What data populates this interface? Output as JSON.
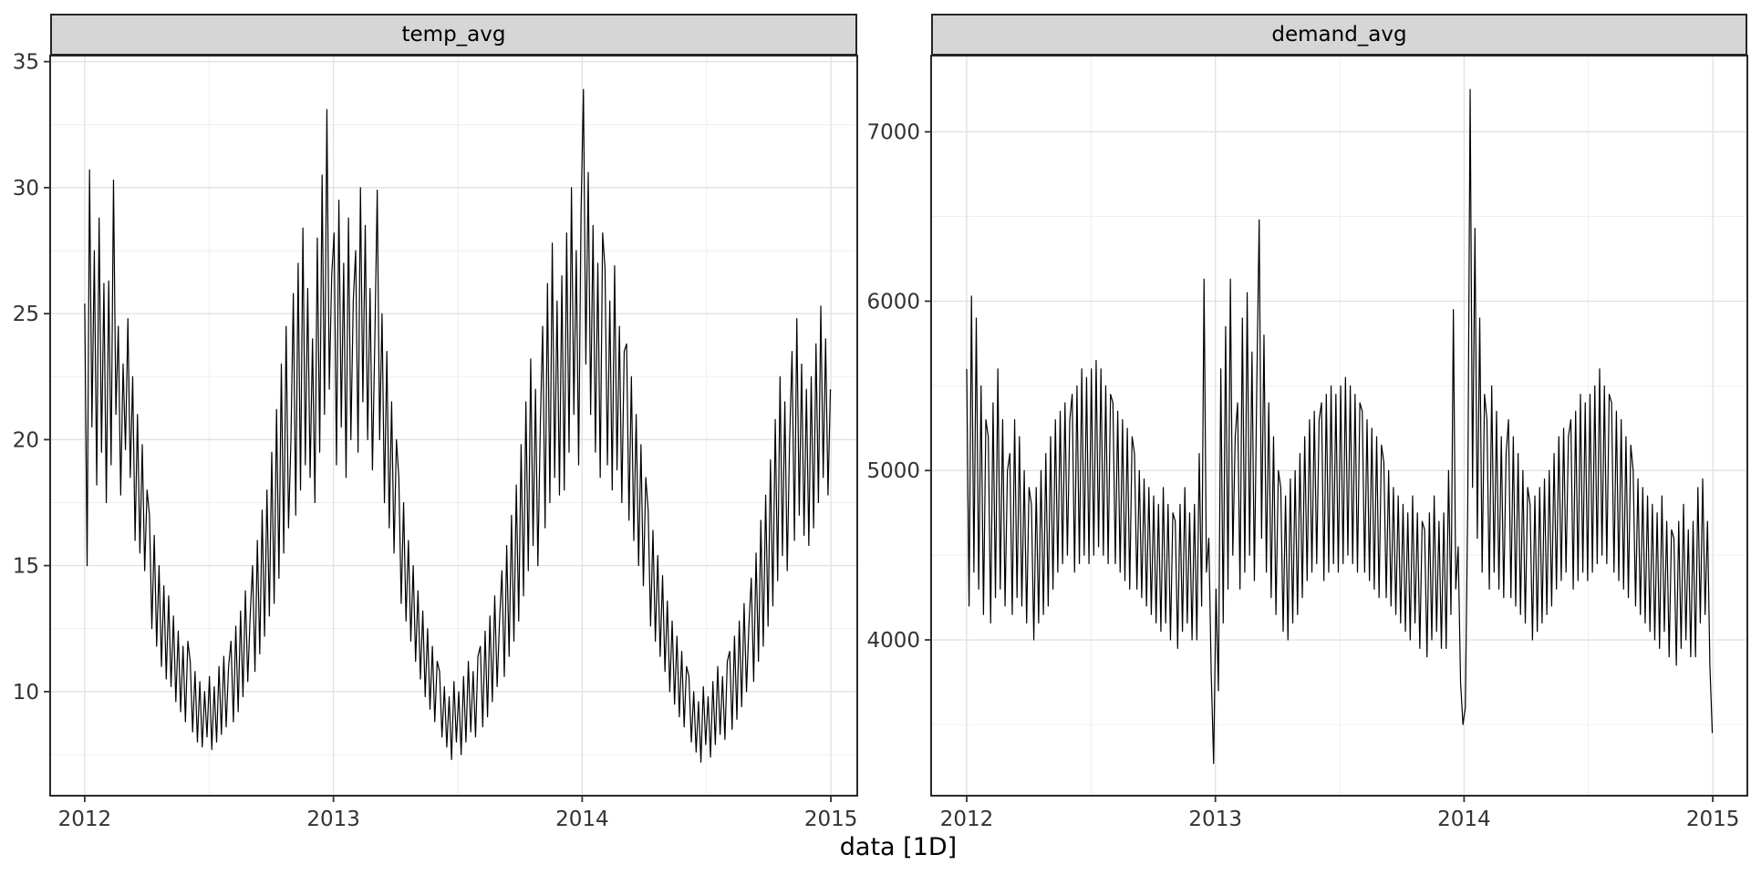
{
  "figure": {
    "x_axis_label": "data [1D]",
    "facets": [
      "temp_avg",
      "demand_avg"
    ]
  },
  "colors": {
    "background": "#ffffff",
    "panel_background": "#ffffff",
    "panel_border": "#121212",
    "strip_fill": "#d6d6d6",
    "strip_border": "#262626",
    "grid_major": "#e2e2e2",
    "grid_minor": "#ededed",
    "series_line": "#000000",
    "tick_text": "#333333",
    "tick_mark": "#333333"
  },
  "chart_data": [
    {
      "type": "line",
      "facet_label": "temp_avg",
      "title": "temp_avg",
      "xlabel": "data [1D]",
      "ylabel": "",
      "legend": "none",
      "grid": "on",
      "x_unit": "decimal_year",
      "x_start": 2012.0,
      "x_end": 2014.998,
      "sampling": "daily series shown; stored here downsampled to ~2 points/week",
      "xlim": [
        2011.861,
        2015.106
      ],
      "xticks": [
        2012,
        2013,
        2014,
        2015
      ],
      "xticks_minor": [
        2012.5,
        2013.5,
        2014.5
      ],
      "ylim": [
        5.87,
        35.24
      ],
      "yticks": [
        10,
        15,
        20,
        25,
        30,
        35
      ],
      "yticks_minor": [
        7.5,
        12.5,
        17.5,
        22.5,
        27.5,
        32.5
      ],
      "values": [
        25.4,
        15,
        30.7,
        20.5,
        27.5,
        18.2,
        28.8,
        19.5,
        26.2,
        17.5,
        26.3,
        19,
        30.3,
        21,
        24.5,
        17.8,
        23,
        19.6,
        24.8,
        18.5,
        22.5,
        16,
        21,
        15.5,
        19.8,
        14.8,
        18,
        17,
        12.5,
        16.2,
        11.8,
        15,
        11,
        14.2,
        10.5,
        13.8,
        10.2,
        13,
        9.6,
        12.4,
        9.2,
        11.8,
        8.8,
        12,
        11.2,
        8.4,
        10.8,
        8,
        10.4,
        7.8,
        10,
        8.2,
        10.6,
        7.7,
        10.2,
        8,
        11,
        8.3,
        11.4,
        8.6,
        11,
        12,
        8.8,
        12.6,
        9.2,
        13.2,
        9.8,
        14,
        10.4,
        13,
        15,
        10.8,
        16,
        11.5,
        17.2,
        12.2,
        18,
        13,
        19.5,
        13.5,
        21.2,
        14.5,
        23,
        15.5,
        24.5,
        16.5,
        20,
        25.8,
        17,
        27,
        18,
        28.4,
        19,
        26,
        18.5,
        24,
        17.5,
        28,
        19.5,
        30.5,
        21,
        33.1,
        22,
        26.5,
        28.2,
        19,
        29.5,
        20.5,
        27,
        18.5,
        28.8,
        20,
        25.5,
        27.5,
        19.5,
        30,
        21.5,
        28.5,
        20,
        26,
        18.8,
        24,
        29.9,
        20,
        25,
        17.5,
        23.5,
        16.5,
        21.5,
        15.5,
        20,
        18.5,
        13.5,
        17.5,
        12.8,
        16,
        12,
        15,
        11.2,
        14,
        10.5,
        13.2,
        9.8,
        12.5,
        9.3,
        11.8,
        8.8,
        11.2,
        10.8,
        8.2,
        10.2,
        7.8,
        9.8,
        7.3,
        10.4,
        8,
        10,
        7.5,
        10.6,
        8,
        11.2,
        8.4,
        10.8,
        8.2,
        11.4,
        11.8,
        8.6,
        12.4,
        9,
        13,
        9.6,
        13.8,
        10.2,
        12.8,
        14.8,
        10.6,
        15.8,
        11.4,
        17,
        12,
        18.2,
        12.8,
        19.8,
        13.8,
        21.5,
        14.8,
        23.2,
        15.8,
        22,
        15,
        20.5,
        24.5,
        16.5,
        26.2,
        17.5,
        27.8,
        18.5,
        25.5,
        17.8,
        26.5,
        18,
        28.2,
        19.5,
        30,
        21,
        27.5,
        19,
        29,
        33.9,
        23,
        30.6,
        21,
        28.5,
        19.5,
        27,
        18.5,
        28.2,
        26.8,
        19,
        25.5,
        18,
        26.9,
        18.8,
        24.5,
        17.5,
        23.5,
        23.8,
        16.8,
        22.5,
        16,
        21,
        15,
        19.8,
        14.2,
        18.5,
        17.2,
        12.6,
        16.4,
        12,
        15.4,
        11.4,
        14.6,
        10.8,
        13.6,
        10,
        12.8,
        9.5,
        12.2,
        9,
        11.6,
        8.6,
        11,
        10.6,
        8,
        10,
        7.6,
        9.6,
        7.2,
        10.2,
        7.9,
        9.8,
        7.4,
        10.4,
        7.9,
        11,
        8.3,
        10.6,
        8.1,
        11.2,
        11.6,
        8.5,
        12.2,
        8.9,
        12.8,
        9.4,
        13.5,
        10,
        12.6,
        14.5,
        10.4,
        15.5,
        11.2,
        16.8,
        11.8,
        17.8,
        12.6,
        19.2,
        13.4,
        20.8,
        14.4,
        22.5,
        15.4,
        21.5,
        14.8,
        20,
        23.5,
        16,
        24.8,
        17,
        23,
        16.2,
        22,
        15.8,
        22.5,
        16.5,
        23.8,
        17.5,
        25.3,
        18.5,
        24,
        17.8,
        22
      ]
    },
    {
      "type": "line",
      "facet_label": "demand_avg",
      "title": "demand_avg",
      "xlabel": "data [1D]",
      "ylabel": "",
      "legend": "none",
      "grid": "on",
      "x_unit": "decimal_year",
      "x_start": 2012.0,
      "x_end": 2014.998,
      "sampling": "daily series shown; stored here downsampled to ~2 points/week",
      "xlim": [
        2011.857,
        2015.139
      ],
      "xticks": [
        2012,
        2013,
        2014,
        2015
      ],
      "xticks_minor": [
        2012.5,
        2013.5,
        2014.5
      ],
      "ylim": [
        3080,
        7450
      ],
      "yticks": [
        4000,
        5000,
        6000,
        7000
      ],
      "yticks_minor": [
        3500,
        4500,
        5500,
        6500
      ],
      "values": [
        5600,
        4200,
        6030,
        4400,
        5900,
        4300,
        5500,
        4150,
        5300,
        5200,
        4100,
        5400,
        4250,
        5600,
        4300,
        5300,
        4200,
        5000,
        5100,
        4150,
        5300,
        4250,
        5200,
        4200,
        5000,
        4100,
        4900,
        4800,
        4000,
        4900,
        4100,
        5000,
        4150,
        5100,
        4200,
        5200,
        4300,
        5300,
        4400,
        5350,
        4450,
        5400,
        4500,
        5300,
        5450,
        4400,
        5500,
        4450,
        5600,
        4500,
        5550,
        4450,
        5600,
        4500,
        5650,
        4550,
        5600,
        4500,
        5500,
        4450,
        5450,
        5400,
        4450,
        5350,
        4400,
        5300,
        4350,
        5250,
        4300,
        5200,
        5100,
        4300,
        5000,
        4250,
        4950,
        4200,
        4900,
        4150,
        4850,
        4100,
        4800,
        4050,
        4900,
        4100,
        4800,
        4000,
        4750,
        4700,
        3950,
        4800,
        4050,
        4900,
        4100,
        4750,
        4000,
        4800,
        4000,
        5100,
        4200,
        6130,
        4400,
        4600,
        3800,
        3270,
        4300,
        3700,
        5600,
        4100,
        5850,
        4300,
        6130,
        4500,
        5200,
        5400,
        4300,
        5900,
        4400,
        6050,
        4500,
        5700,
        4350,
        5500,
        6480,
        4600,
        5800,
        4400,
        5400,
        4250,
        5200,
        4150,
        5000,
        4900,
        4050,
        4850,
        4000,
        4950,
        4100,
        5000,
        4150,
        5100,
        4250,
        5200,
        4350,
        5300,
        4400,
        5350,
        4450,
        5300,
        5400,
        4350,
        5450,
        4400,
        5500,
        4450,
        5450,
        4400,
        5500,
        4450,
        5550,
        4500,
        5500,
        4450,
        5450,
        4400,
        5400,
        5350,
        4400,
        5300,
        4350,
        5250,
        4300,
        5200,
        4250,
        5150,
        5050,
        4250,
        5000,
        4200,
        4900,
        4150,
        4850,
        4100,
        4800,
        4050,
        4750,
        4000,
        4850,
        4100,
        4750,
        3950,
        4700,
        4650,
        3900,
        4750,
        4000,
        4850,
        4050,
        4700,
        3950,
        4750,
        3950,
        5000,
        4150,
        5950,
        4300,
        4550,
        3750,
        3500,
        3600,
        4800,
        7250,
        4900,
        6430,
        4600,
        5900,
        4400,
        5450,
        5300,
        4300,
        5500,
        4400,
        5350,
        4300,
        5200,
        4250,
        5100,
        5300,
        4250,
        5200,
        4200,
        5100,
        4150,
        5000,
        4100,
        4900,
        4800,
        4000,
        4850,
        4050,
        4900,
        4100,
        4950,
        4150,
        5000,
        4200,
        5100,
        4300,
        5200,
        4350,
        5250,
        4400,
        5200,
        5300,
        4300,
        5350,
        4350,
        5450,
        4400,
        5400,
        4350,
        5450,
        4400,
        5500,
        4450,
        5600,
        4500,
        5500,
        4450,
        5450,
        5400,
        4400,
        5350,
        4350,
        5300,
        4300,
        5200,
        4250,
        5150,
        5000,
        4200,
        4950,
        4150,
        4900,
        4100,
        4850,
        4050,
        4800,
        4000,
        4750,
        3950,
        4850,
        4050,
        4700,
        3900,
        4650,
        4600,
        3850,
        4700,
        3950,
        4800,
        4000,
        4650,
        3900,
        4700,
        3900,
        4900,
        4100,
        4950,
        4150,
        4700,
        3850,
        3450
      ]
    }
  ]
}
